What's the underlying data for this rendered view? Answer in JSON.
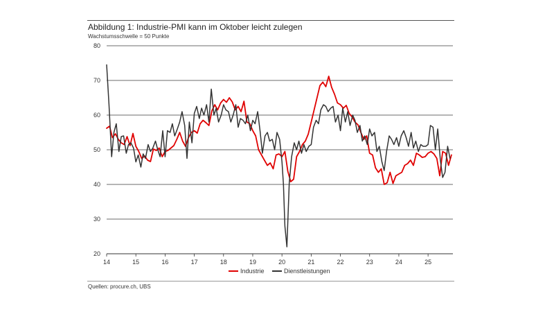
{
  "chart_data": {
    "type": "line",
    "title": "Abbildung 1: Industrie-PMI kann im Oktober leicht zulegen",
    "subtitle": "Wachstumsschwelle = 50 Punkte",
    "source": "Quellen: procure.ch, UBS",
    "xlabel": "",
    "ylabel": "",
    "xlim": [
      2014.0,
      2025.85
    ],
    "ylim": [
      20,
      80
    ],
    "yticks": [
      20,
      30,
      40,
      50,
      60,
      70,
      80
    ],
    "xticks": [
      {
        "value": 2014,
        "label": "14"
      },
      {
        "value": 2015,
        "label": "15"
      },
      {
        "value": 2016,
        "label": "16"
      },
      {
        "value": 2017,
        "label": "17"
      },
      {
        "value": 2018,
        "label": "18"
      },
      {
        "value": 2019,
        "label": "19"
      },
      {
        "value": 2020,
        "label": "20"
      },
      {
        "value": 2021,
        "label": "21"
      },
      {
        "value": 2022,
        "label": "22"
      },
      {
        "value": 2023,
        "label": "23"
      },
      {
        "value": 2024,
        "label": "24"
      },
      {
        "value": 2025,
        "label": "25"
      }
    ],
    "grid": true,
    "legend_position": "bottom-center",
    "series": [
      {
        "name": "Industrie",
        "color": "#e00000",
        "points": [
          [
            2014.0,
            56.2
          ],
          [
            2014.1,
            56.8
          ],
          [
            2014.2,
            53.5
          ],
          [
            2014.3,
            54.6
          ],
          [
            2014.4,
            53.0
          ],
          [
            2014.5,
            52.0
          ],
          [
            2014.6,
            51.5
          ],
          [
            2014.7,
            53.8
          ],
          [
            2014.8,
            51.2
          ],
          [
            2014.9,
            54.7
          ],
          [
            2015.0,
            51.0
          ],
          [
            2015.1,
            49.5
          ],
          [
            2015.2,
            47.5
          ],
          [
            2015.3,
            48.2
          ],
          [
            2015.4,
            47.0
          ],
          [
            2015.5,
            46.6
          ],
          [
            2015.6,
            50.2
          ],
          [
            2015.7,
            49.8
          ],
          [
            2015.8,
            50.5
          ],
          [
            2015.9,
            48.0
          ],
          [
            2016.0,
            49.5
          ],
          [
            2016.1,
            49.8
          ],
          [
            2016.2,
            50.5
          ],
          [
            2016.3,
            51.2
          ],
          [
            2016.4,
            53.0
          ],
          [
            2016.5,
            55.0
          ],
          [
            2016.6,
            52.5
          ],
          [
            2016.7,
            51.0
          ],
          [
            2016.8,
            53.5
          ],
          [
            2016.9,
            55.0
          ],
          [
            2017.0,
            55.5
          ],
          [
            2017.1,
            54.8
          ],
          [
            2017.2,
            57.5
          ],
          [
            2017.3,
            58.5
          ],
          [
            2017.4,
            57.8
          ],
          [
            2017.5,
            57.0
          ],
          [
            2017.6,
            61.2
          ],
          [
            2017.7,
            63.0
          ],
          [
            2017.8,
            61.5
          ],
          [
            2017.9,
            63.5
          ],
          [
            2018.0,
            64.5
          ],
          [
            2018.1,
            63.7
          ],
          [
            2018.2,
            65.0
          ],
          [
            2018.3,
            63.8
          ],
          [
            2018.4,
            61.5
          ],
          [
            2018.5,
            62.5
          ],
          [
            2018.6,
            61.0
          ],
          [
            2018.7,
            64.0
          ],
          [
            2018.8,
            58.0
          ],
          [
            2018.9,
            57.5
          ],
          [
            2019.0,
            55.5
          ],
          [
            2019.1,
            54.0
          ],
          [
            2019.2,
            50.0
          ],
          [
            2019.3,
            48.5
          ],
          [
            2019.4,
            47.0
          ],
          [
            2019.5,
            45.5
          ],
          [
            2019.6,
            46.2
          ],
          [
            2019.7,
            44.5
          ],
          [
            2019.8,
            48.5
          ],
          [
            2019.9,
            48.8
          ],
          [
            2020.0,
            48.0
          ],
          [
            2020.1,
            49.5
          ],
          [
            2020.2,
            43.8
          ],
          [
            2020.3,
            40.8
          ],
          [
            2020.4,
            41.5
          ],
          [
            2020.5,
            48.0
          ],
          [
            2020.6,
            49.5
          ],
          [
            2020.7,
            51.5
          ],
          [
            2020.8,
            52.5
          ],
          [
            2020.9,
            54.5
          ],
          [
            2021.0,
            58.0
          ],
          [
            2021.1,
            61.5
          ],
          [
            2021.2,
            65.0
          ],
          [
            2021.3,
            68.5
          ],
          [
            2021.4,
            69.5
          ],
          [
            2021.5,
            68.2
          ],
          [
            2021.6,
            71.2
          ],
          [
            2021.7,
            68.0
          ],
          [
            2021.8,
            66.0
          ],
          [
            2021.9,
            63.5
          ],
          [
            2022.0,
            63.0
          ],
          [
            2022.1,
            62.0
          ],
          [
            2022.2,
            62.8
          ],
          [
            2022.3,
            60.5
          ],
          [
            2022.4,
            59.5
          ],
          [
            2022.5,
            58.0
          ],
          [
            2022.6,
            57.2
          ],
          [
            2022.7,
            55.0
          ],
          [
            2022.8,
            53.0
          ],
          [
            2022.9,
            54.0
          ],
          [
            2023.0,
            49.0
          ],
          [
            2023.1,
            48.5
          ],
          [
            2023.2,
            44.8
          ],
          [
            2023.3,
            43.5
          ],
          [
            2023.4,
            44.5
          ],
          [
            2023.5,
            40.0
          ],
          [
            2023.6,
            40.5
          ],
          [
            2023.7,
            43.5
          ],
          [
            2023.8,
            40.3
          ],
          [
            2023.9,
            42.5
          ],
          [
            2024.0,
            43.0
          ],
          [
            2024.1,
            43.5
          ],
          [
            2024.2,
            45.5
          ],
          [
            2024.3,
            46.0
          ],
          [
            2024.4,
            47.0
          ],
          [
            2024.5,
            45.5
          ],
          [
            2024.6,
            49.0
          ],
          [
            2024.7,
            48.5
          ],
          [
            2024.8,
            47.8
          ],
          [
            2024.9,
            48.0
          ],
          [
            2025.0,
            49.0
          ],
          [
            2025.1,
            49.5
          ],
          [
            2025.2,
            48.8
          ],
          [
            2025.3,
            47.5
          ],
          [
            2025.4,
            42.5
          ],
          [
            2025.5,
            49.5
          ],
          [
            2025.6,
            49.0
          ],
          [
            2025.7,
            45.5
          ],
          [
            2025.8,
            48.5
          ]
        ]
      },
      {
        "name": "Dienstleistungen",
        "color": "#333333",
        "points": [
          [
            2014.0,
            74.5
          ],
          [
            2014.08,
            63.0
          ],
          [
            2014.17,
            48.0
          ],
          [
            2014.25,
            55.0
          ],
          [
            2014.33,
            57.5
          ],
          [
            2014.42,
            49.5
          ],
          [
            2014.5,
            53.8
          ],
          [
            2014.58,
            54.0
          ],
          [
            2014.67,
            49.0
          ],
          [
            2014.75,
            51.5
          ],
          [
            2014.83,
            52.0
          ],
          [
            2014.92,
            50.5
          ],
          [
            2015.0,
            46.5
          ],
          [
            2015.08,
            48.5
          ],
          [
            2015.17,
            45.0
          ],
          [
            2015.25,
            48.8
          ],
          [
            2015.33,
            47.5
          ],
          [
            2015.42,
            51.5
          ],
          [
            2015.5,
            49.5
          ],
          [
            2015.58,
            50.5
          ],
          [
            2015.67,
            52.5
          ],
          [
            2015.75,
            50.0
          ],
          [
            2015.83,
            48.0
          ],
          [
            2015.92,
            55.5
          ],
          [
            2016.0,
            48.0
          ],
          [
            2016.08,
            55.5
          ],
          [
            2016.17,
            55.0
          ],
          [
            2016.25,
            57.5
          ],
          [
            2016.33,
            54.0
          ],
          [
            2016.42,
            56.0
          ],
          [
            2016.5,
            58.0
          ],
          [
            2016.58,
            61.0
          ],
          [
            2016.67,
            57.0
          ],
          [
            2016.75,
            47.5
          ],
          [
            2016.83,
            58.0
          ],
          [
            2016.92,
            52.0
          ],
          [
            2017.0,
            60.5
          ],
          [
            2017.08,
            62.5
          ],
          [
            2017.17,
            59.0
          ],
          [
            2017.25,
            62.0
          ],
          [
            2017.33,
            60.0
          ],
          [
            2017.42,
            63.0
          ],
          [
            2017.5,
            58.0
          ],
          [
            2017.58,
            67.5
          ],
          [
            2017.67,
            60.0
          ],
          [
            2017.75,
            62.0
          ],
          [
            2017.83,
            58.0
          ],
          [
            2017.92,
            60.0
          ],
          [
            2018.0,
            63.0
          ],
          [
            2018.08,
            61.5
          ],
          [
            2018.17,
            61.0
          ],
          [
            2018.25,
            58.0
          ],
          [
            2018.33,
            60.0
          ],
          [
            2018.42,
            63.0
          ],
          [
            2018.5,
            56.5
          ],
          [
            2018.58,
            59.0
          ],
          [
            2018.67,
            58.5
          ],
          [
            2018.75,
            57.5
          ],
          [
            2018.83,
            60.0
          ],
          [
            2018.92,
            55.5
          ],
          [
            2019.0,
            58.5
          ],
          [
            2019.08,
            57.5
          ],
          [
            2019.17,
            61.0
          ],
          [
            2019.25,
            55.5
          ],
          [
            2019.33,
            49.0
          ],
          [
            2019.42,
            54.0
          ],
          [
            2019.5,
            55.0
          ],
          [
            2019.58,
            52.5
          ],
          [
            2019.67,
            53.0
          ],
          [
            2019.75,
            50.0
          ],
          [
            2019.83,
            55.0
          ],
          [
            2019.92,
            53.0
          ],
          [
            2020.0,
            46.5
          ],
          [
            2020.05,
            40.0
          ],
          [
            2020.1,
            28.0
          ],
          [
            2020.17,
            22.0
          ],
          [
            2020.25,
            40.5
          ],
          [
            2020.33,
            48.0
          ],
          [
            2020.42,
            52.0
          ],
          [
            2020.5,
            50.0
          ],
          [
            2020.58,
            52.5
          ],
          [
            2020.67,
            49.0
          ],
          [
            2020.75,
            51.5
          ],
          [
            2020.83,
            49.5
          ],
          [
            2020.92,
            51.0
          ],
          [
            2021.0,
            51.5
          ],
          [
            2021.08,
            56.5
          ],
          [
            2021.17,
            58.5
          ],
          [
            2021.25,
            57.5
          ],
          [
            2021.33,
            61.5
          ],
          [
            2021.42,
            63.0
          ],
          [
            2021.5,
            62.5
          ],
          [
            2021.58,
            61.0
          ],
          [
            2021.67,
            62.0
          ],
          [
            2021.75,
            62.5
          ],
          [
            2021.83,
            58.0
          ],
          [
            2021.92,
            60.0
          ],
          [
            2022.0,
            55.5
          ],
          [
            2022.08,
            62.0
          ],
          [
            2022.17,
            58.0
          ],
          [
            2022.25,
            61.0
          ],
          [
            2022.33,
            57.0
          ],
          [
            2022.42,
            60.0
          ],
          [
            2022.5,
            58.5
          ],
          [
            2022.58,
            55.0
          ],
          [
            2022.67,
            57.0
          ],
          [
            2022.75,
            52.5
          ],
          [
            2022.83,
            54.0
          ],
          [
            2022.92,
            51.5
          ],
          [
            2023.0,
            56.0
          ],
          [
            2023.08,
            54.0
          ],
          [
            2023.17,
            55.0
          ],
          [
            2023.25,
            49.5
          ],
          [
            2023.33,
            51.0
          ],
          [
            2023.42,
            46.5
          ],
          [
            2023.5,
            44.0
          ],
          [
            2023.58,
            49.5
          ],
          [
            2023.67,
            54.0
          ],
          [
            2023.75,
            53.0
          ],
          [
            2023.83,
            51.5
          ],
          [
            2023.92,
            53.5
          ],
          [
            2024.0,
            51.0
          ],
          [
            2024.08,
            54.0
          ],
          [
            2024.17,
            55.5
          ],
          [
            2024.25,
            53.5
          ],
          [
            2024.33,
            51.0
          ],
          [
            2024.42,
            55.0
          ],
          [
            2024.5,
            50.5
          ],
          [
            2024.58,
            52.5
          ],
          [
            2024.67,
            49.5
          ],
          [
            2024.75,
            51.5
          ],
          [
            2024.83,
            51.0
          ],
          [
            2024.92,
            51.0
          ],
          [
            2025.0,
            51.5
          ],
          [
            2025.08,
            57.0
          ],
          [
            2025.17,
            56.5
          ],
          [
            2025.25,
            50.0
          ],
          [
            2025.33,
            56.0
          ],
          [
            2025.42,
            47.0
          ],
          [
            2025.5,
            42.0
          ],
          [
            2025.58,
            43.5
          ],
          [
            2025.67,
            51.0
          ],
          [
            2025.75,
            47.5
          ]
        ]
      }
    ]
  }
}
